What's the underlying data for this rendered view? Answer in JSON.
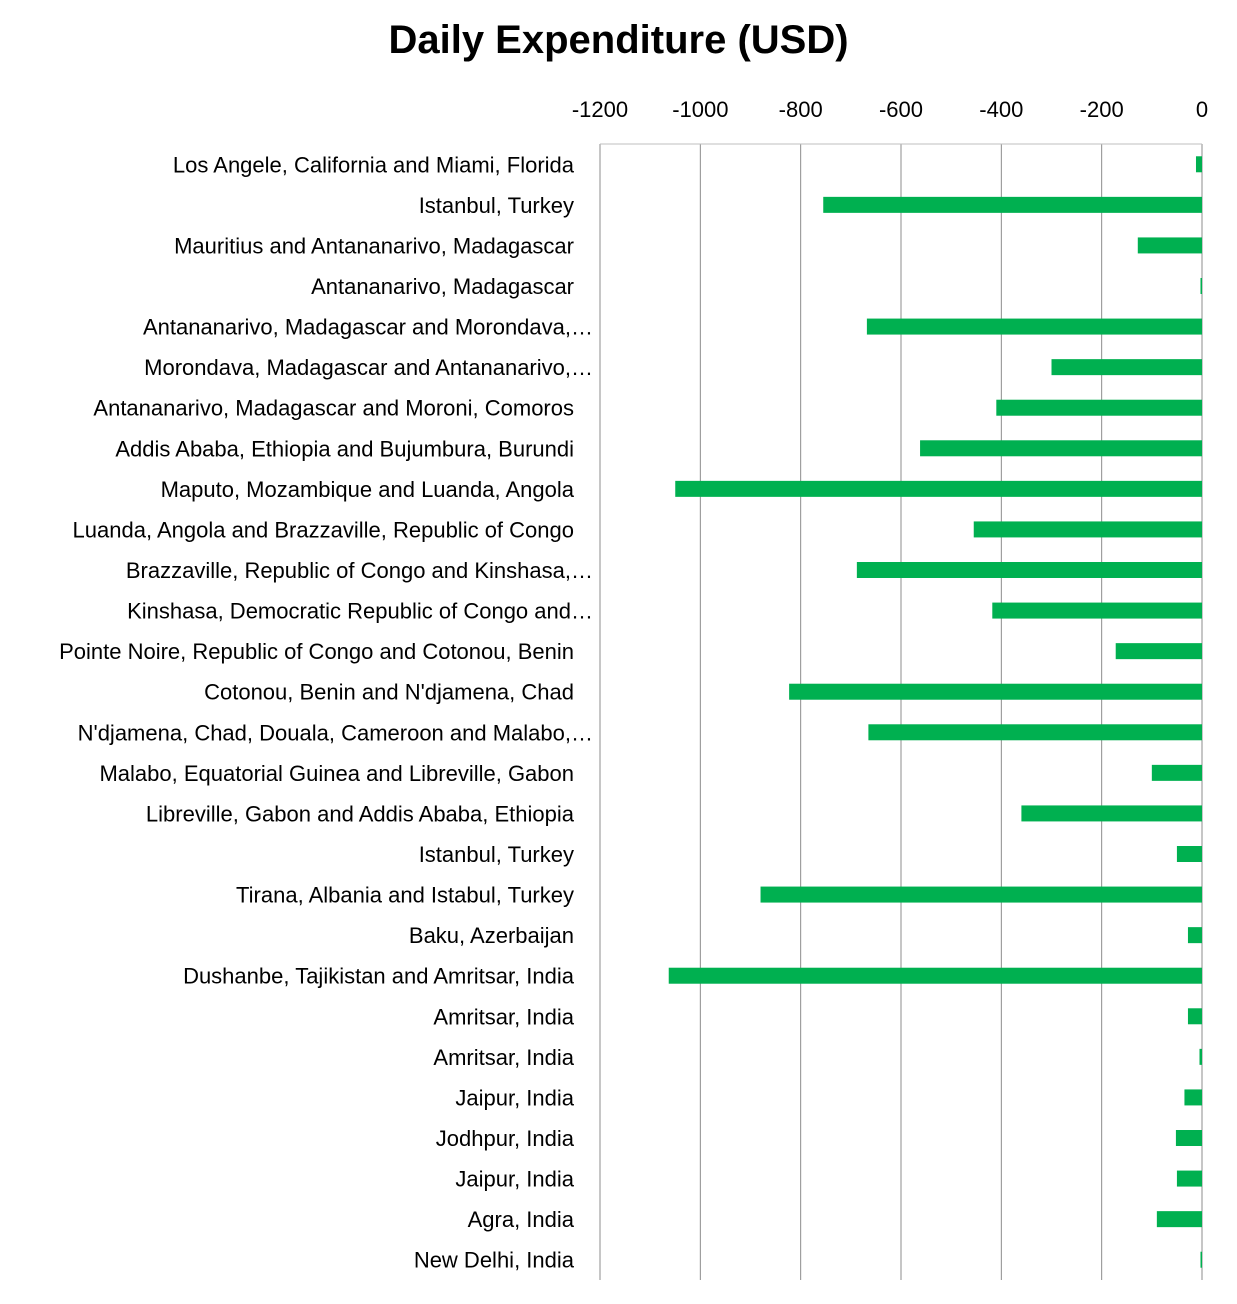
{
  "chart_data": {
    "type": "bar",
    "orientation": "horizontal",
    "title": "Daily Expenditure (USD)",
    "xlabel": "",
    "ylabel": "",
    "x_axis_position": "top",
    "xlim": [
      -1200,
      0
    ],
    "x_ticks": [
      -1200,
      -1000,
      -800,
      -600,
      -400,
      -200,
      0
    ],
    "x_tick_labels": [
      "-1200",
      "-1000",
      "-800",
      "-600",
      "-400",
      "-200",
      "0"
    ],
    "grid": true,
    "legend": "none",
    "bar_color": "#00b050",
    "categories": [
      "Los Angele, California and Miami, Florida",
      "Istanbul, Turkey",
      "Mauritius and Antananarivo, Madagascar",
      "Antananarivo, Madagascar",
      "Antananarivo, Madagascar and Morondava,…",
      "Morondava, Madagascar and Antananarivo,…",
      "Antananarivo, Madagascar and Moroni, Comoros",
      "Addis Ababa, Ethiopia and Bujumbura, Burundi",
      "Maputo, Mozambique and Luanda, Angola",
      "Luanda, Angola and Brazzaville, Republic of Congo",
      "Brazzaville, Republic of Congo and Kinshasa,…",
      "Kinshasa, Democratic Republic of Congo and…",
      "Pointe Noire, Republic of Congo and Cotonou, Benin",
      "Cotonou, Benin and N'djamena, Chad",
      "N'djamena, Chad, Douala, Cameroon and Malabo,…",
      "Malabo, Equatorial Guinea and Libreville, Gabon",
      "Libreville, Gabon and Addis Ababa, Ethiopia",
      "Istanbul, Turkey",
      "Tirana, Albania and Istabul, Turkey",
      "Baku, Azerbaijan",
      "Dushanbe, Tajikistan and Amritsar, India",
      "Amritsar, India",
      "Amritsar, India",
      "Jaipur, India",
      "Jodhpur, India",
      "Jaipur, India",
      "Agra, India",
      "New Delhi, India"
    ],
    "values": [
      -12,
      -755,
      -128,
      -3,
      -668,
      -300,
      -410,
      -562,
      -1050,
      -455,
      -688,
      -418,
      -172,
      -823,
      -665,
      -100,
      -360,
      -50,
      -880,
      -28,
      -1063,
      -28,
      -5,
      -35,
      -52,
      -50,
      -90,
      -3
    ]
  }
}
